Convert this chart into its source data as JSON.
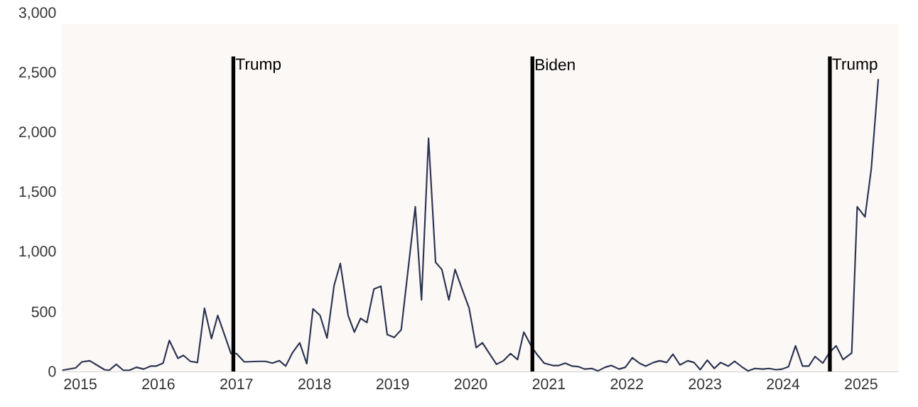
{
  "chart_data": {
    "type": "line",
    "color": "#2b3350",
    "x": [
      2014.77,
      2014.94,
      2015.02,
      2015.12,
      2015.31,
      2015.37,
      2015.46,
      2015.55,
      2015.63,
      2015.72,
      2015.81,
      2015.9,
      2015.97,
      2016.06,
      2016.14,
      2016.25,
      2016.32,
      2016.41,
      2016.5,
      2016.59,
      2016.68,
      2016.76,
      2016.88,
      2016.93,
      2017.0,
      2017.1,
      2017.28,
      2017.37,
      2017.46,
      2017.55,
      2017.63,
      2017.72,
      2017.81,
      2017.9,
      2017.98,
      2018.07,
      2018.16,
      2018.25,
      2018.33,
      2018.43,
      2018.51,
      2018.59,
      2018.67,
      2018.76,
      2018.85,
      2018.93,
      2019.02,
      2019.11,
      2019.29,
      2019.37,
      2019.46,
      2019.55,
      2019.63,
      2019.72,
      2019.8,
      2019.89,
      2019.98,
      2020.07,
      2020.15,
      2020.23,
      2020.33,
      2020.42,
      2020.51,
      2020.6,
      2020.68,
      2020.77,
      2020.84,
      2020.94,
      2021.05,
      2021.13,
      2021.21,
      2021.3,
      2021.38,
      2021.46,
      2021.55,
      2021.63,
      2021.72,
      2021.8,
      2021.9,
      2021.98,
      2022.07,
      2022.16,
      2022.24,
      2022.34,
      2022.42,
      2022.51,
      2022.59,
      2022.68,
      2022.78,
      2022.86,
      2022.94,
      2023.03,
      2023.12,
      2023.2,
      2023.3,
      2023.38,
      2023.47,
      2023.55,
      2023.64,
      2023.74,
      2023.82,
      2023.91,
      2023.99,
      2024.07,
      2024.16,
      2024.25,
      2024.33,
      2024.41,
      2024.51,
      2024.59,
      2024.68,
      2024.77,
      2024.88,
      2024.95,
      2025.05,
      2025.13,
      2025.22
    ],
    "values": [
      10,
      30,
      80,
      90,
      15,
      10,
      60,
      10,
      10,
      35,
      20,
      45,
      45,
      70,
      260,
      110,
      135,
      85,
      75,
      530,
      275,
      470,
      245,
      150,
      150,
      80,
      85,
      85,
      70,
      90,
      45,
      160,
      240,
      65,
      525,
      470,
      280,
      720,
      905,
      470,
      330,
      445,
      410,
      690,
      715,
      310,
      285,
      350,
      1380,
      600,
      1955,
      915,
      855,
      600,
      855,
      690,
      530,
      200,
      240,
      160,
      60,
      90,
      150,
      100,
      330,
      220,
      150,
      70,
      50,
      50,
      70,
      45,
      40,
      20,
      25,
      5,
      35,
      50,
      20,
      35,
      115,
      70,
      45,
      75,
      90,
      75,
      145,
      55,
      90,
      75,
      15,
      95,
      25,
      75,
      45,
      85,
      40,
      5,
      25,
      20,
      25,
      15,
      20,
      40,
      215,
      45,
      45,
      125,
      70,
      155,
      215,
      100,
      155,
      1380,
      1295,
      1695,
      2450
    ],
    "xlim": [
      2014.76,
      2025.48
    ],
    "ylim": [
      0,
      3000
    ],
    "xticks": [
      2015,
      2016,
      2017,
      2018,
      2019,
      2020,
      2021,
      2022,
      2023,
      2024,
      2025
    ],
    "yticks": [
      0,
      500,
      {
        "value": 1000,
        "label": "1,000"
      },
      {
        "value": 1500,
        "label": "1,500"
      },
      {
        "value": 2000,
        "label": "2,000"
      },
      {
        "value": 2500,
        "label": "2,500"
      },
      {
        "value": 3000,
        "label": "3,000"
      }
    ],
    "ref_lines": [
      {
        "axis": "x",
        "value": 2016.96,
        "label": "Trump",
        "color": "#000000"
      },
      {
        "axis": "x",
        "value": 2020.79,
        "label": "Biden",
        "color": "#000000"
      },
      {
        "axis": "x",
        "value": 2024.6,
        "label": "Trump",
        "color": "#000000"
      }
    ]
  }
}
